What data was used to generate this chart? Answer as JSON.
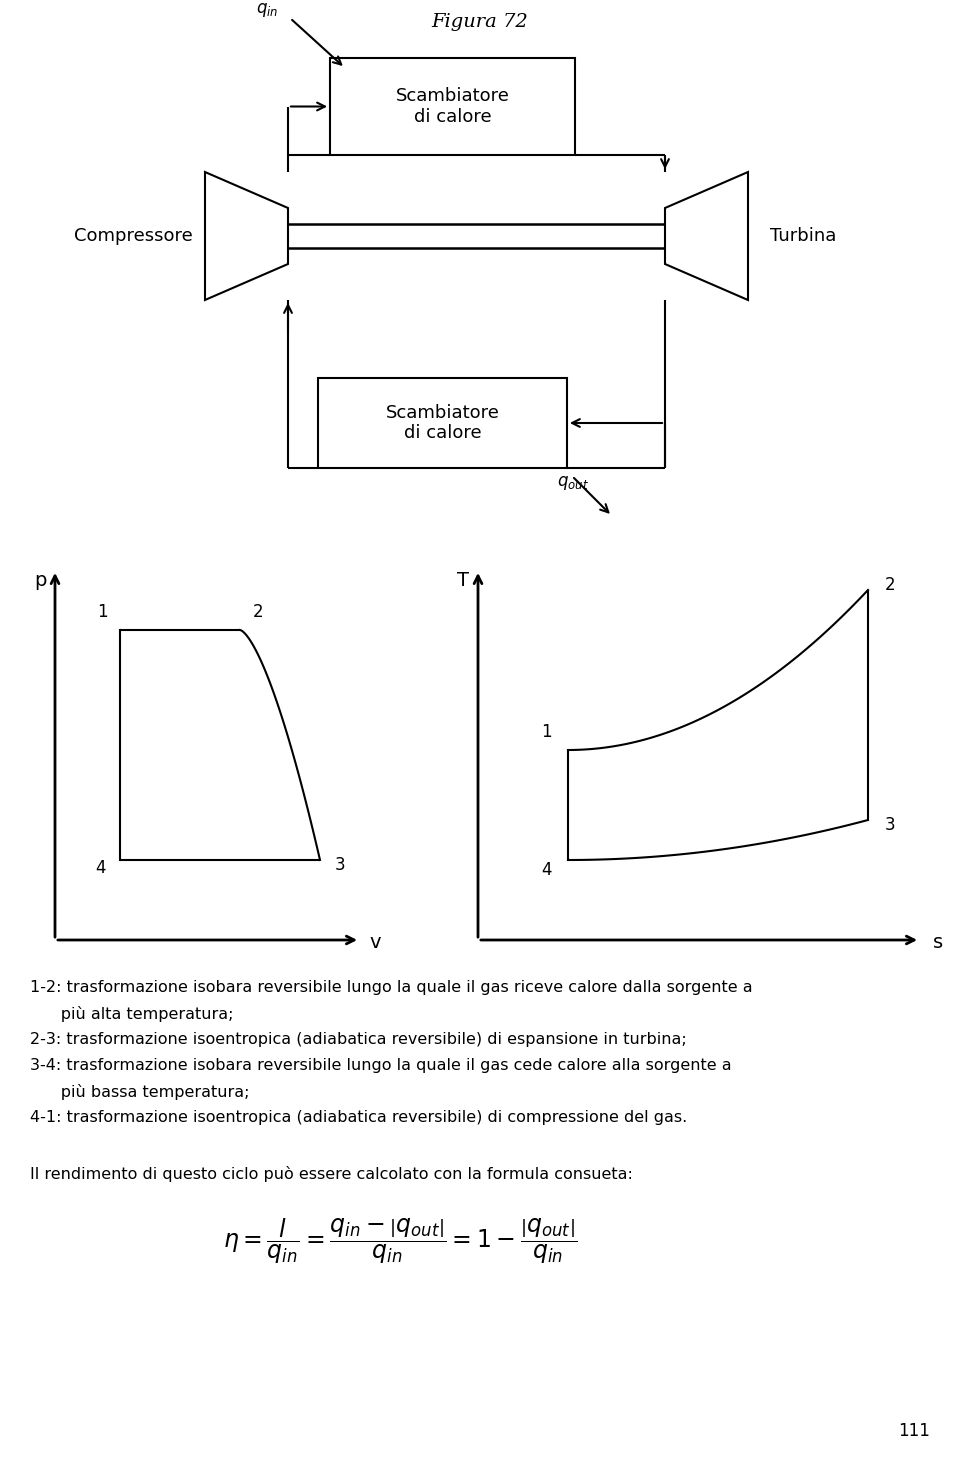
{
  "title": "Figura 72",
  "bg_color": "#ffffff",
  "text_color": "#000000",
  "text_lines": [
    "1-2: trasformazione isobara reversibile lungo la quale il gas riceve calore dalla sorgente a",
    "      più alta temperatura;",
    "2-3: trasformazione isoentropica (adiabatica reversibile) di espansione in turbina;",
    "3-4: trasformazione isobara reversibile lungo la quale il gas cede calore alla sorgente a",
    "      più bassa temperatura;",
    "4-1: trasformazione isoentropica (adiabatica reversibile) di compressione del gas."
  ],
  "formula_text": "Il rendimento di questo ciclo può essere calcolato con la formula consueta:"
}
